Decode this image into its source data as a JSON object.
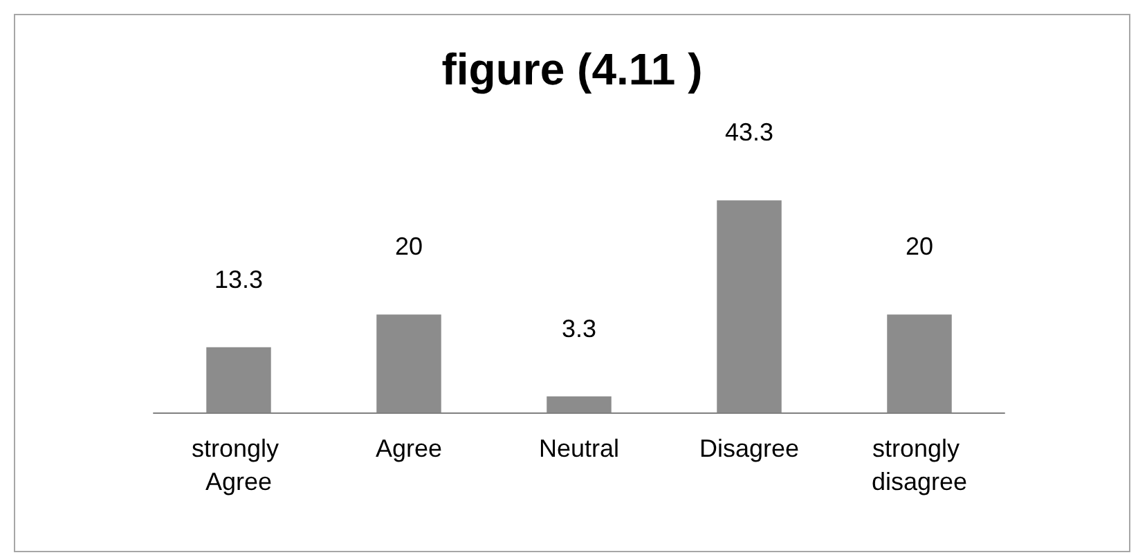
{
  "chart_data": {
    "type": "bar",
    "title": "figure (4.11 )",
    "categories": [
      "strongly Agree",
      "Agree",
      "Neutral",
      "Disagree",
      "strongly disagree"
    ],
    "values": [
      13.3,
      20,
      3.3,
      43.3,
      20
    ],
    "color": "#8c8c8c",
    "data_labels": true
  }
}
